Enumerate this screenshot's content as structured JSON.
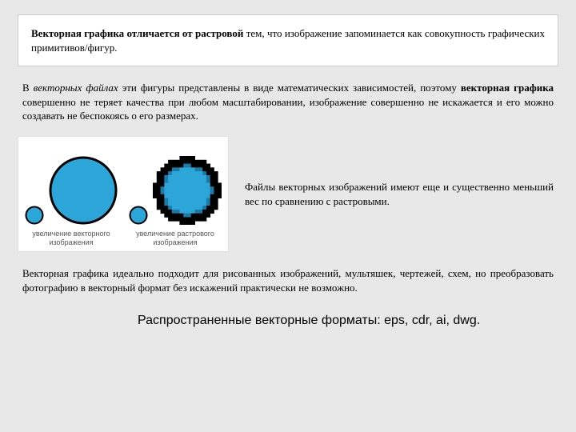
{
  "header_html": "<b>Векторная графика отличается от растровой</b> тем, что изображение запоминается как совокупность графических примитивов/фигур.",
  "para1_html": "В <i>векторных файлах</i> эти фигуры представлены в виде математических зависимостей, поэтому <b>векторная графика</b> совершенно не теряет качества при любом масштабировании, изображение совершенно не искажается и его можно создавать не беспокоясь о его размерах.",
  "diagram": {
    "fill": "#2ca6d8",
    "stroke": "#000000",
    "bg": "#ffffff",
    "pixel": "#1a7aa8",
    "groups": [
      {
        "caption": "увеличение векторного\nизображения",
        "small_d": 24,
        "small_sw": 2,
        "big_d": 86,
        "big_sw": 3,
        "pixelated": false
      },
      {
        "caption": "увеличение растрового\nизображения",
        "small_d": 24,
        "small_sw": 2,
        "big_d": 86,
        "big_sw": 10,
        "pixelated": true
      }
    ]
  },
  "sidetext": "Файлы векторных изображений имеют еще и существенно меньший вес по сравнению с растровыми.",
  "para2": "Векторная графика идеально подходит для рисованных изображений, мультяшек, чертежей, схем, но преобразовать фотографию в векторный формат без искажений практически не возможно.",
  "formats": "Распространенные векторные форматы: eps, cdr, ai, dwg."
}
